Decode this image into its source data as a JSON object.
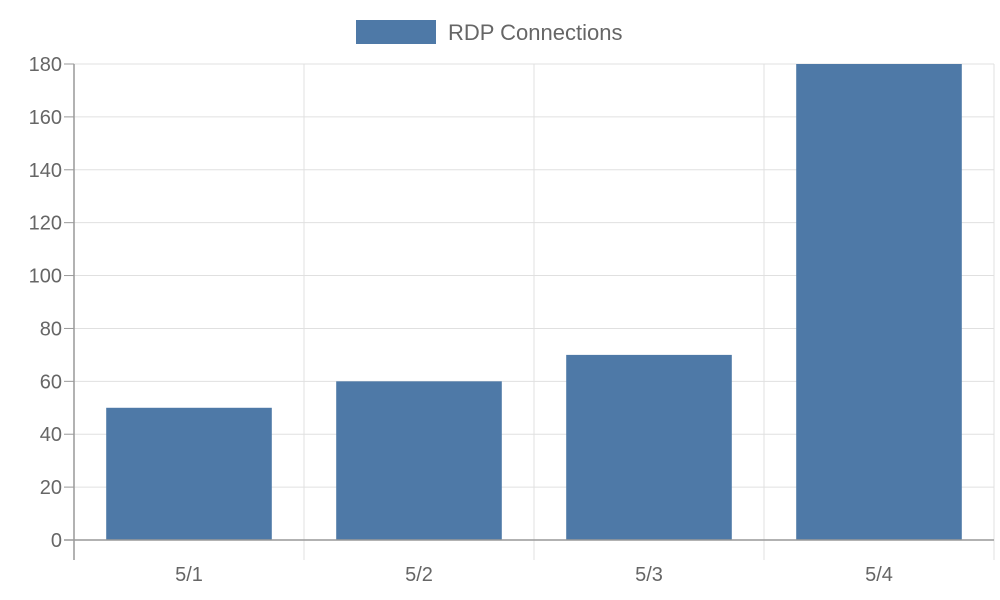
{
  "chart_data": {
    "type": "bar",
    "title": "",
    "xlabel": "",
    "ylabel": "",
    "categories": [
      "5/1",
      "5/2",
      "5/3",
      "5/4"
    ],
    "series": [
      {
        "name": "RDP Connections",
        "values": [
          50,
          60,
          70,
          180
        ],
        "color": "#4e79a7"
      }
    ],
    "ylim": [
      0,
      180
    ],
    "yticks": [
      0,
      20,
      40,
      60,
      80,
      100,
      120,
      140,
      160,
      180
    ],
    "grid": true,
    "legend_position": "top-center"
  },
  "colors": {
    "bar": "#4e79a7",
    "grid": "#e0e0e0",
    "axis": "#999999",
    "text": "#666666"
  }
}
